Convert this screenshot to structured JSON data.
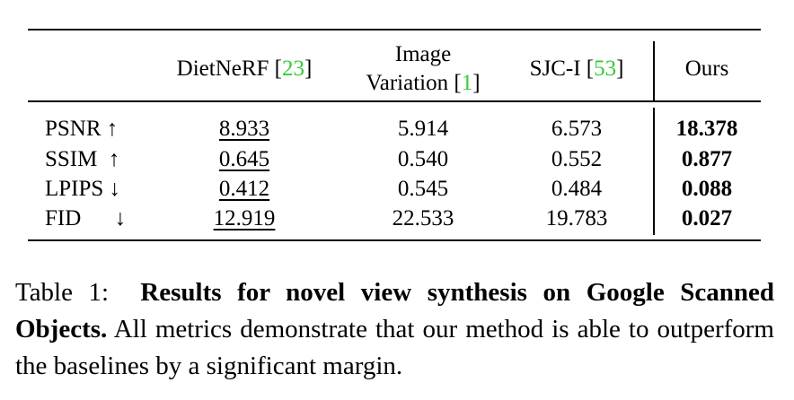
{
  "table": {
    "columns": {
      "dietnerf": {
        "name": "DietNeRF [",
        "cite": "23",
        "close": "]"
      },
      "image_variation": {
        "line1": "Image",
        "line2": "Variation [",
        "cite": "1",
        "close": "]"
      },
      "sjc": {
        "name": "SJC-I [",
        "cite": "53",
        "close": "]"
      },
      "ours": "Ours"
    },
    "rows": [
      {
        "metric": "PSNR ↑",
        "dietnerf": "8.933",
        "image_variation": "5.914",
        "sjc": "6.573",
        "ours": "18.378"
      },
      {
        "metric": "SSIM  ↑",
        "dietnerf": "0.645",
        "image_variation": "0.540",
        "sjc": "0.552",
        "ours": "0.877"
      },
      {
        "metric": "LPIPS ↓",
        "dietnerf": "0.412",
        "image_variation": "0.545",
        "sjc": "0.484",
        "ours": "0.088"
      },
      {
        "metric": "FID      ↓",
        "dietnerf": "12.919",
        "image_variation": "22.533",
        "sjc": "19.783",
        "ours": "0.027"
      }
    ]
  },
  "caption": {
    "label": "Table 1:",
    "title": "Results for novel view synthesis on Google Scanned Objects.",
    "body": "All metrics demonstrate that our method is able to outperform the baselines by a significant margin."
  }
}
